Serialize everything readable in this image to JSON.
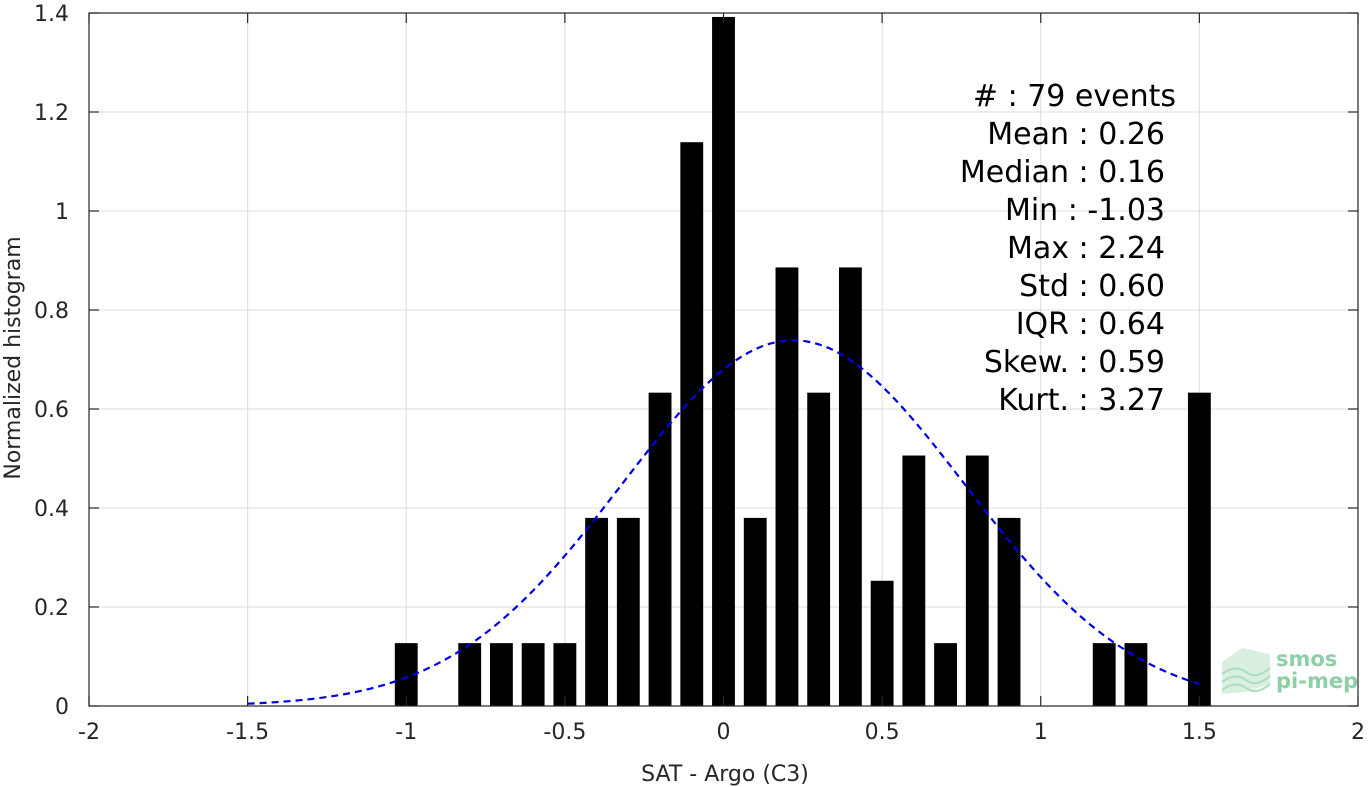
{
  "chart_data": {
    "type": "bar",
    "xlabel": "SAT - Argo (C3)",
    "ylabel": "Normalized histogram",
    "xlim": [
      -2,
      2
    ],
    "ylim": [
      0,
      1.4
    ],
    "xticks": [
      -2,
      -1.5,
      -1,
      -0.5,
      0,
      0.5,
      1,
      1.5,
      2
    ],
    "xtick_labels": [
      "-2",
      "-1.5",
      "-1",
      "-0.5",
      "0",
      "0.5",
      "1",
      "1.5",
      "2"
    ],
    "yticks": [
      0,
      0.2,
      0.4,
      0.6,
      0.8,
      1,
      1.2,
      1.4
    ],
    "ytick_labels": [
      "0",
      "0.2",
      "0.4",
      "0.6",
      "0.8",
      "1",
      "1.2",
      "1.4"
    ],
    "grid": true,
    "bar_color": "#000000",
    "bin_width": 0.1,
    "bars": [
      {
        "x": -1.0,
        "y": 0.127
      },
      {
        "x": -0.8,
        "y": 0.127
      },
      {
        "x": -0.7,
        "y": 0.127
      },
      {
        "x": -0.6,
        "y": 0.127
      },
      {
        "x": -0.5,
        "y": 0.127
      },
      {
        "x": -0.4,
        "y": 0.38
      },
      {
        "x": -0.3,
        "y": 0.38
      },
      {
        "x": -0.2,
        "y": 0.633
      },
      {
        "x": -0.1,
        "y": 1.139
      },
      {
        "x": 0.0,
        "y": 1.392
      },
      {
        "x": 0.1,
        "y": 0.38
      },
      {
        "x": 0.2,
        "y": 0.886
      },
      {
        "x": 0.3,
        "y": 0.633
      },
      {
        "x": 0.4,
        "y": 0.886
      },
      {
        "x": 0.5,
        "y": 0.253
      },
      {
        "x": 0.6,
        "y": 0.506
      },
      {
        "x": 0.7,
        "y": 0.127
      },
      {
        "x": 0.8,
        "y": 0.506
      },
      {
        "x": 0.9,
        "y": 0.38
      },
      {
        "x": 1.2,
        "y": 0.127
      },
      {
        "x": 1.3,
        "y": 0.127
      },
      {
        "x": 1.5,
        "y": 0.633
      }
    ],
    "fit_curve": {
      "style": "dashed",
      "color": "#0000e6",
      "mean": 0.22,
      "std": 0.54,
      "x_range": [
        -1.5,
        1.5
      ]
    },
    "stats": [
      "#  : 79 events",
      "Mean : 0.26",
      "Median : 0.16",
      "Min : -1.03",
      "Max : 2.24",
      "Std : 0.60",
      "IQR : 0.64",
      "Skew. : 0.59",
      "Kurt. : 3.27"
    ]
  },
  "logo": {
    "line1": "smos",
    "line2": "pi-mep",
    "color": "#8fcfa6"
  }
}
